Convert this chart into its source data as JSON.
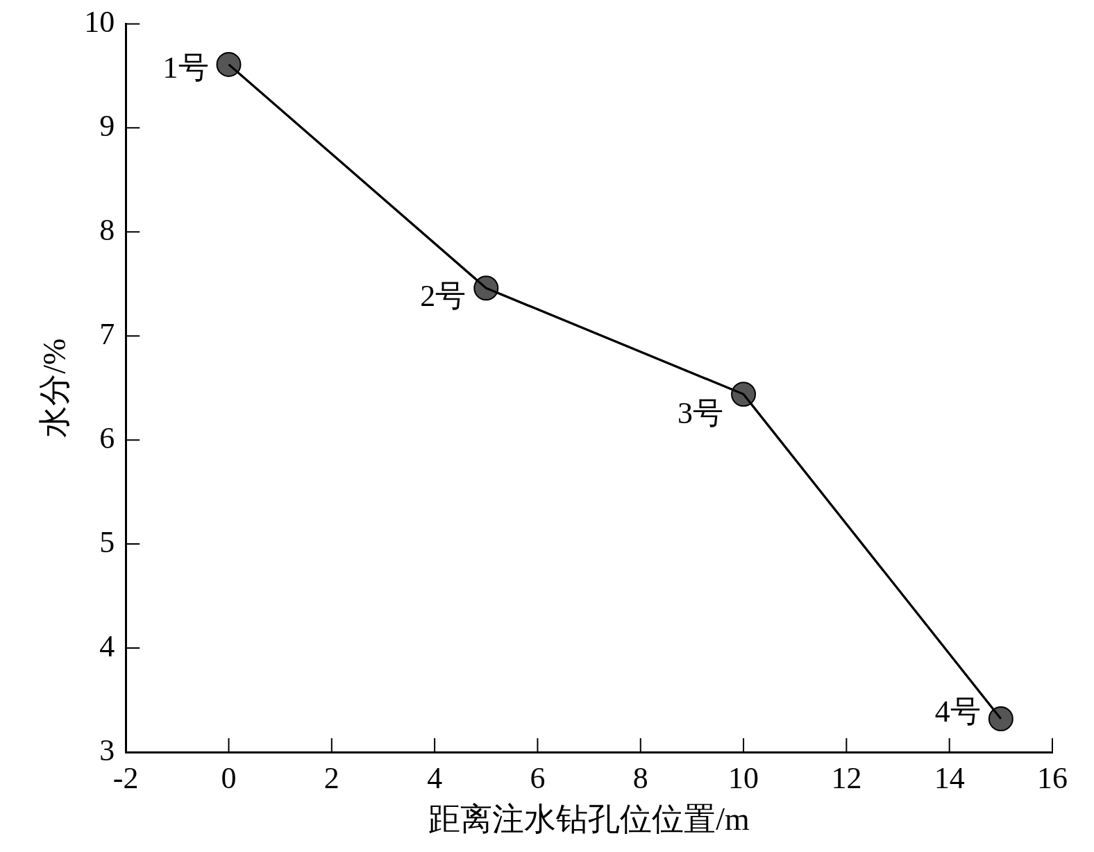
{
  "chart_data": {
    "type": "line",
    "xlabel": "距离注水钻孔位位置/m",
    "ylabel": "水分/%",
    "x": [
      0,
      5,
      10,
      15
    ],
    "series": [
      {
        "color": "#000000",
        "values": [
          9.61,
          7.46,
          6.44,
          3.32
        ]
      }
    ],
    "xlim": [
      -2,
      16
    ],
    "xticks": [
      -2,
      0,
      2,
      4,
      6,
      8,
      10,
      12,
      14,
      16
    ],
    "ylim": [
      3,
      10
    ],
    "yticks": [
      3,
      4,
      5,
      6,
      7,
      8,
      9,
      10
    ],
    "marker": "circle",
    "line_style": "solid",
    "annotations": [
      {
        "text": "1号",
        "x": 0,
        "y": 9.61
      },
      {
        "text": "2号",
        "x": 5,
        "y": 7.46
      },
      {
        "text": "3号",
        "x": 10,
        "y": 6.44
      },
      {
        "text": "4号",
        "x": 15,
        "y": 3.32
      }
    ]
  }
}
